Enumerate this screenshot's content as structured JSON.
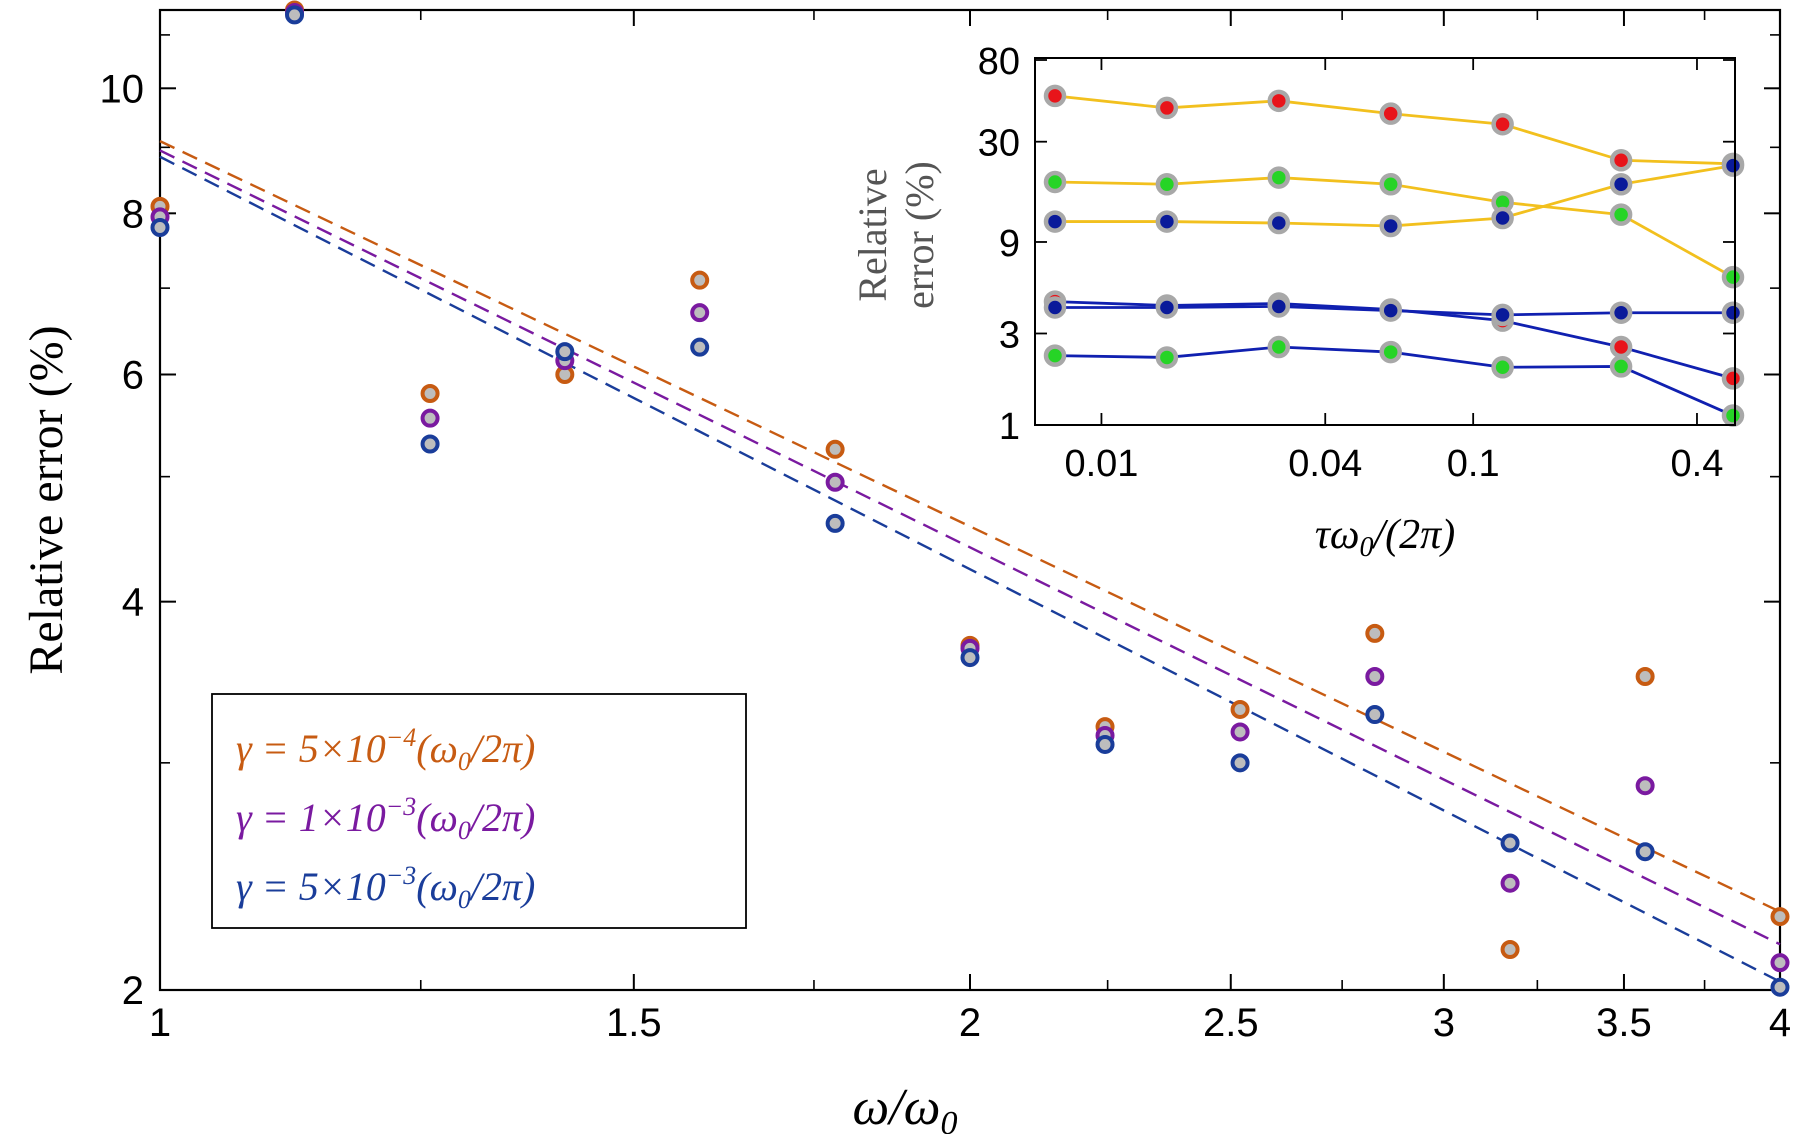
{
  "chart_data": [
    {
      "type": "scatter",
      "id": "main",
      "title": "",
      "xlabel": "ω/ω",
      "xlabel_sub": "0",
      "ylabel": "Relative error (%)",
      "xscale": "log",
      "yscale": "log",
      "xlim": [
        1,
        4
      ],
      "ylim": [
        2,
        11.5
      ],
      "xticks": [
        1,
        1.5,
        2,
        2.5,
        3,
        3.5,
        4
      ],
      "xtick_labels": [
        "1",
        "1.5",
        "2",
        "2.5",
        "3",
        "3.5",
        "4"
      ],
      "yticks": [
        2,
        4,
        6,
        8,
        10
      ],
      "ytick_labels": [
        "2",
        "4",
        "6",
        "8",
        "10"
      ],
      "grid": false,
      "legend_position": "bottom-left",
      "x": [
        1.0,
        1.122,
        1.26,
        1.414,
        1.587,
        1.782,
        2.0,
        2.245,
        2.52,
        2.828,
        3.175,
        3.564,
        4.0
      ],
      "series": [
        {
          "name": "γ = 5×10",
          "exp": "−4",
          "tail": "(ω",
          "sub": "0",
          "end": "/2π)",
          "color": "#c75b12",
          "values": [
            8.1,
            11.5,
            5.8,
            6.0,
            7.1,
            5.25,
            3.7,
            3.2,
            3.3,
            3.78,
            2.15,
            3.5,
            2.28
          ],
          "fit": [
            9.1,
            2.3
          ]
        },
        {
          "name": "γ = 1×10",
          "exp": "−3",
          "tail": "(ω",
          "sub": "0",
          "end": "/2π)",
          "color": "#7a1aa0",
          "values": [
            7.95,
            11.45,
            5.55,
            6.15,
            6.7,
            4.95,
            3.68,
            3.15,
            3.17,
            3.5,
            2.42,
            2.88,
            2.1
          ],
          "fit": [
            8.95,
            2.17
          ]
        },
        {
          "name": "γ = 5×10",
          "exp": "−3",
          "tail": "(ω",
          "sub": "0",
          "end": "/2π)",
          "color": "#1a3d9a",
          "values": [
            7.8,
            11.4,
            5.3,
            6.25,
            6.3,
            4.6,
            3.62,
            3.1,
            3.0,
            3.27,
            2.6,
            2.56,
            2.01
          ],
          "fit": [
            8.85,
            2.03
          ]
        }
      ]
    },
    {
      "type": "line",
      "id": "inset",
      "xlabel": "τω",
      "xlabel_sub": "0",
      "xlabel_end": "/(2π)",
      "ylabel_line1": "Relative",
      "ylabel_line2": "error (%)",
      "xscale": "log",
      "yscale": "log",
      "xlim": [
        0.0075,
        0.5
      ],
      "ylim": [
        1,
        80
      ],
      "xticks": [
        0.01,
        0.04,
        0.1,
        0.4
      ],
      "xtick_labels": [
        "0.01",
        "0.04",
        "0.1",
        "0.4"
      ],
      "yticks": [
        1,
        3,
        9,
        30,
        80
      ],
      "ytick_labels": [
        "1",
        "3",
        "9",
        "30",
        "80"
      ],
      "x": [
        0.0075,
        0.015,
        0.03,
        0.06,
        0.12,
        0.25,
        0.5
      ],
      "series": [
        {
          "name": "upper-red",
          "line_color": "#f2c01e",
          "marker_color": "#e8141a",
          "values": [
            52,
            45,
            49,
            42,
            37,
            24,
            23
          ]
        },
        {
          "name": "upper-green",
          "line_color": "#f2c01e",
          "marker_color": "#26d426",
          "values": [
            18.5,
            18,
            19.5,
            18,
            14.5,
            12.5,
            5.9
          ]
        },
        {
          "name": "upper-blue",
          "line_color": "#f2c01e",
          "marker_color": "#0a1a9a",
          "values": [
            11.5,
            11.5,
            11.3,
            10.9,
            12.0,
            18.0,
            22.5
          ]
        },
        {
          "name": "lower-red",
          "line_color": "#1020b0",
          "marker_color": "#e8141a",
          "values": [
            4.4,
            4.2,
            4.3,
            4.0,
            3.5,
            2.55,
            1.75
          ]
        },
        {
          "name": "lower-green",
          "line_color": "#1020b0",
          "marker_color": "#26d426",
          "values": [
            2.3,
            2.25,
            2.55,
            2.4,
            2.0,
            2.02,
            1.12
          ]
        },
        {
          "name": "lower-blue",
          "line_color": "#1020b0",
          "marker_color": "#0a1a9a",
          "values": [
            4.1,
            4.1,
            4.15,
            3.95,
            3.75,
            3.85,
            3.85
          ]
        }
      ]
    }
  ]
}
